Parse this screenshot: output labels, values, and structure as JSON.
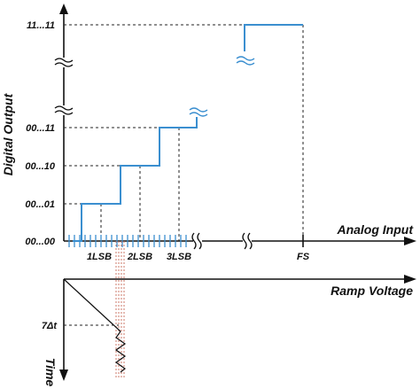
{
  "y_axis": {
    "title": "Digital Output",
    "codes": [
      "00...00",
      "00...01",
      "00...10",
      "00...11",
      "11...11"
    ]
  },
  "x_axis": {
    "title": "Analog Input",
    "ticks": [
      "1LSB",
      "2LSB",
      "3LSB",
      "FS"
    ]
  },
  "ramp": {
    "title": "Ramp Voltage",
    "time_axis_title": "Time",
    "step_label": "7Δt"
  },
  "colors": {
    "transfer_curve": "#3b8fd0",
    "axes": "#111111",
    "ramp_marker": "#c96b5a"
  }
}
